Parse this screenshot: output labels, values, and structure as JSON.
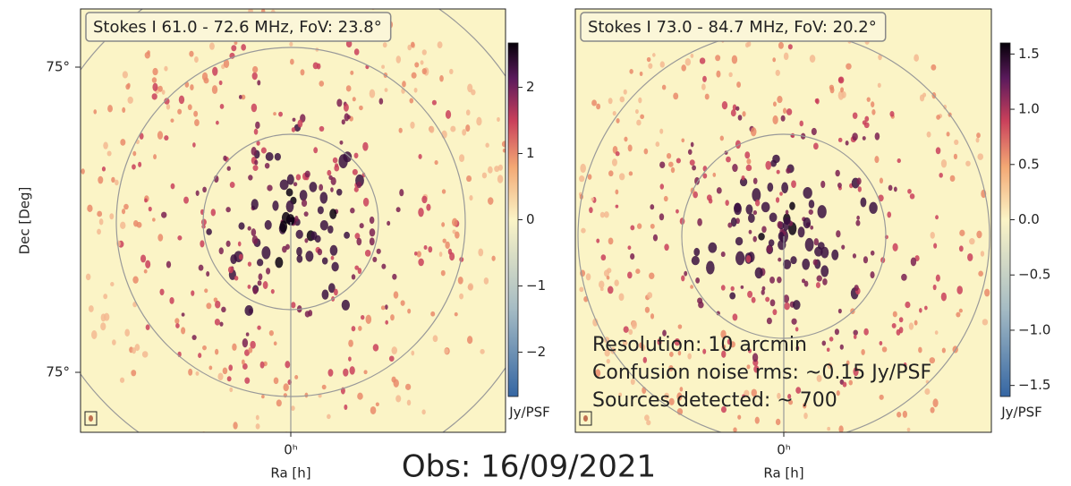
{
  "chart_data": [
    {
      "type": "image",
      "title": "Stokes I 61.0 - 72.6 MHz, FoV: 23.8°",
      "y_label": "Dec [Deg]",
      "y_tick_labels": [
        "75°",
        "75°"
      ],
      "x_tick_labels": [
        "0ʰ"
      ],
      "x_label": "Ra [h]",
      "colorbar": {
        "label": "Jy/PSF",
        "lim": [
          -2.67,
          2.67
        ],
        "ticks": [
          {
            "value": -2,
            "label": "−2"
          },
          {
            "value": -1,
            "label": "−1"
          },
          0,
          1,
          2
        ]
      }
    },
    {
      "type": "image",
      "title": "Stokes I 73.0 - 84.7 MHz, FoV: 20.2°",
      "x_tick_labels": [
        "0ʰ"
      ],
      "x_label": "Ra [h]",
      "annotations": [
        "Resolution: 10 arcmin",
        "Confusion noise rms: ~0.15 Jy/PSF",
        "Sources detected: ~ 700"
      ],
      "colorbar": {
        "label": "Jy/PSF",
        "lim": [
          -1.6,
          1.6
        ],
        "ticks": [
          {
            "value": -1.5,
            "label": "−1.5"
          },
          {
            "value": -1.0,
            "label": "−1.0"
          },
          {
            "value": -0.5,
            "label": "−0.5"
          },
          {
            "value": 0.0,
            "label": "0.0"
          },
          {
            "value": 0.5,
            "label": "0.5"
          },
          {
            "value": 1.0,
            "label": "1.0"
          },
          {
            "value": 1.5,
            "label": "1.5"
          }
        ]
      }
    }
  ],
  "footer": "Obs: 16/09/2021"
}
